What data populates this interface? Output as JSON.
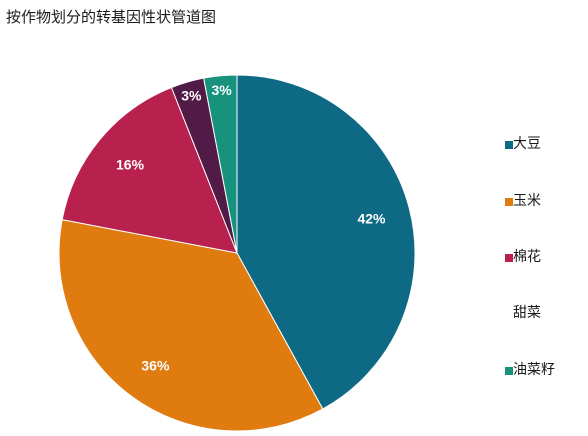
{
  "chart_data": {
    "type": "pie",
    "title": "按作物划分的转基因性状管道图",
    "categories": [
      "大豆",
      "玉米",
      "棉花",
      "甜菜",
      "油菜籽"
    ],
    "values": [
      42,
      36,
      16,
      3,
      3
    ],
    "labels": [
      "42%",
      "36%",
      "16%",
      "3%",
      "3%"
    ],
    "legend_labels": [
      "大豆",
      "玉米",
      "棉花",
      "甜菜",
      "油菜籽"
    ],
    "colors": [
      "#0e6985",
      "#e07b10",
      "#b8214d",
      "#521a47",
      "#17937d"
    ],
    "legend_swatch_visible": [
      true,
      true,
      true,
      false,
      true
    ],
    "legend_position": "right"
  }
}
